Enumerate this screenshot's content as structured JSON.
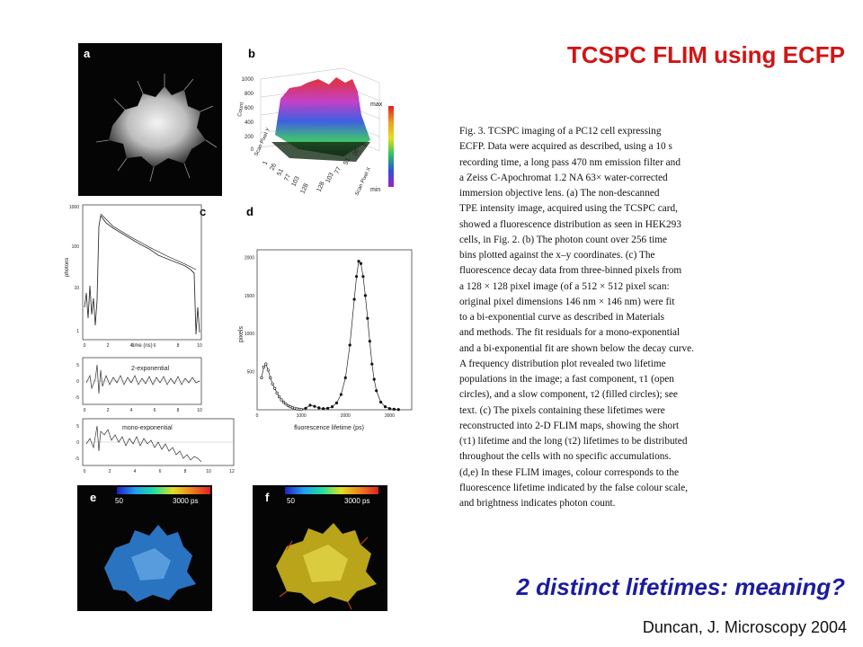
{
  "slide": {
    "title": "TCSPC FLIM using ECFP",
    "question": "2 distinct lifetimes: meaning?",
    "credit": "Duncan, J. Microscopy 2004"
  },
  "figure": {
    "panels": {
      "a": "a",
      "b": "b",
      "c": "c",
      "d": "d",
      "e": "e",
      "f": "f"
    },
    "panel_b": {
      "z_label": "Count",
      "z_ticks": [
        "1000",
        "800",
        "600",
        "400",
        "200",
        "0"
      ],
      "y_label": "Scan Pixel Y",
      "x_label": "Scan Pixel X",
      "y_ticks": [
        "1",
        "26",
        "51",
        "77",
        "103",
        "128"
      ],
      "x_ticks": [
        "1",
        "26",
        "51",
        "77",
        "103",
        "128"
      ],
      "colorbar_max": "max",
      "colorbar_min": "min"
    },
    "panel_c": {
      "ylabel": "photons",
      "xlabel": "time (ns)",
      "y_ticks": [
        "1000",
        "100",
        "10",
        "1"
      ],
      "x_ticks": [
        "0",
        "2",
        "4",
        "6",
        "8",
        "10"
      ],
      "fit_2exp_label": "2-exponential",
      "fit_mono_label": "mono-exponential",
      "res_ticks": [
        "5",
        "0",
        "-5"
      ],
      "res_x_ticks_top": [
        "0",
        "2",
        "4",
        "6",
        "8",
        "10"
      ],
      "res_x_ticks_bottom": [
        "0",
        "2",
        "4",
        "6",
        "8",
        "10",
        "12"
      ]
    },
    "panel_e": {
      "scale_min": "50",
      "scale_max": "3000 ps"
    },
    "panel_f": {
      "scale_min": "50",
      "scale_max": "3000 ps"
    },
    "caption_lines": [
      "Fig. 3. TCSPC imaging of a PC12 cell expressing",
      "ECFP. Data were acquired as described, using a 10 s",
      "recording time, a long pass 470 nm emission filter and",
      "a Zeiss C-Apochromat 1.2 NA 63× water-corrected",
      "immersion objective lens. (a) The non-descanned",
      "TPE intensity image, acquired using the TCSPC card,",
      "showed a fluorescence distribution as seen in HEK293",
      "cells, in Fig. 2. (b) The photon count over 256 time",
      "bins plotted against the x–y coordinates. (c) The",
      "fluorescence decay data from three-binned pixels from",
      "a 128 × 128 pixel image (of a 512 × 512 pixel scan:",
      "original pixel dimensions 146 nm × 146 nm) were fit",
      "to a bi-exponential curve as described in Materials",
      "and methods. The fit residuals for a mono-exponential",
      "and a bi-exponential fit are shown below the decay curve.",
      "A frequency distribution plot revealed two lifetime",
      "populations in the image; a fast component, τ1 (open",
      "circles), and a slow component, τ2 (filled circles); see",
      "text. (c) The pixels containing these lifetimes were",
      "reconstructed into 2-D FLIM maps, showing the short",
      "(τ1) lifetime and the long (τ2) lifetimes to be distributed",
      "throughout the cells with no specific accumulations.",
      "(d,e) In these FLIM images, colour corresponds to the",
      "fluorescence lifetime indicated by the false colour scale,",
      "and brightness indicates photon count."
    ]
  },
  "chart_data": {
    "type": "line",
    "title": "",
    "xlabel": "fluorescence lifetime (ps)",
    "ylabel": "pixels",
    "xlim": [
      0,
      3500
    ],
    "ylim": [
      0,
      2100
    ],
    "x_ticks": [
      "0",
      "1000",
      "2000",
      "3000"
    ],
    "y_ticks": [
      "500",
      "1000",
      "1500",
      "2000"
    ],
    "series": [
      {
        "marker": "open-circle",
        "x": [
          100,
          150,
          200,
          250,
          300,
          350,
          400,
          450,
          500,
          550,
          600,
          650,
          700,
          750,
          800,
          850,
          900,
          950,
          1000
        ],
        "y": [
          420,
          560,
          600,
          520,
          420,
          340,
          280,
          220,
          170,
          130,
          100,
          75,
          55,
          40,
          28,
          20,
          12,
          8,
          5
        ]
      },
      {
        "marker": "filled-circle",
        "x": [
          1100,
          1200,
          1300,
          1400,
          1500,
          1600,
          1700,
          1800,
          1900,
          2000,
          2100,
          2200,
          2250,
          2300,
          2350,
          2400,
          2450,
          2500,
          2550,
          2600,
          2650,
          2700,
          2800,
          2900,
          3000,
          3100,
          3200
        ],
        "y": [
          20,
          60,
          45,
          25,
          15,
          20,
          40,
          90,
          200,
          420,
          850,
          1450,
          1750,
          1950,
          1920,
          1750,
          1500,
          1200,
          900,
          600,
          400,
          250,
          100,
          40,
          15,
          8,
          3
        ]
      }
    ]
  }
}
